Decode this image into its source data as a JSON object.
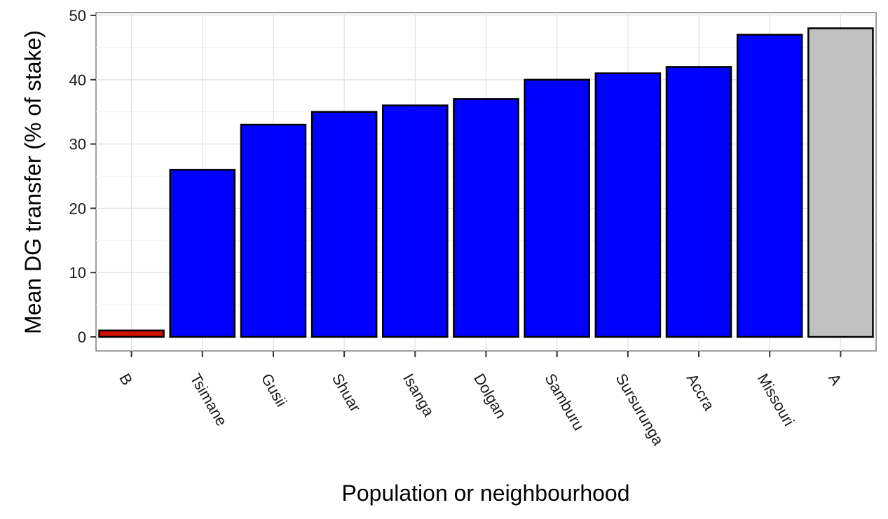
{
  "chart_data": {
    "type": "bar",
    "title": "",
    "xlabel": "Population or neighbourhood",
    "ylabel": "Mean DG transfer (% of stake)",
    "ylim": [
      0,
      50
    ],
    "yticks": [
      0,
      10,
      20,
      30,
      40,
      50
    ],
    "grid": true,
    "categories": [
      "B",
      "Tsimane",
      "Gusii",
      "Shuar",
      "Isanga",
      "Dolgan",
      "Samburu",
      "Sursurunga",
      "Accra",
      "Missouri",
      "A"
    ],
    "values": [
      1,
      26,
      33,
      35,
      36,
      37,
      40,
      41,
      42,
      47,
      48
    ],
    "bar_colors": [
      "#cc1100",
      "#0000ff",
      "#0000ff",
      "#0000ff",
      "#0000ff",
      "#0000ff",
      "#0000ff",
      "#0000ff",
      "#0000ff",
      "#0000ff",
      "#c0c0c0"
    ]
  }
}
